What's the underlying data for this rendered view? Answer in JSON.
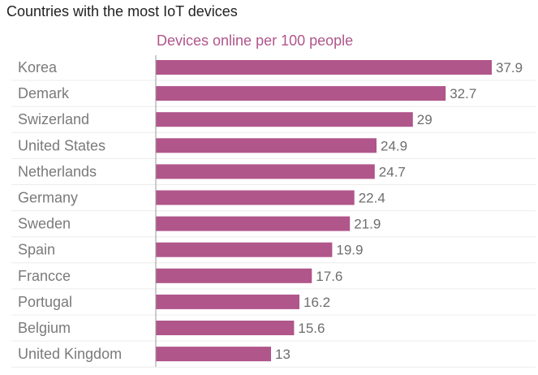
{
  "chart_data": {
    "type": "bar",
    "orientation": "horizontal",
    "title": "Countries with the most IoT devices",
    "series_name": "Devices online per 100 people",
    "categories": [
      "Korea",
      "Demark",
      "Swizerland",
      "United States",
      "Netherlands",
      "Germany",
      "Sweden",
      "Spain",
      "Francce",
      "Portugal",
      "Belgium",
      "United Kingdom"
    ],
    "values": [
      37.9,
      32.7,
      29,
      24.9,
      24.7,
      22.4,
      21.9,
      19.9,
      17.6,
      16.2,
      15.6,
      13
    ],
    "xlim": [
      0,
      37.9
    ],
    "grid": true,
    "colors": {
      "bar": "#b0568a",
      "series_label": "#b0568a",
      "title": "#222222",
      "category_label": "#7a7a7a",
      "value_label": "#6e6e6e",
      "axis": "#9a9a9a",
      "grid": "#ececec"
    }
  }
}
